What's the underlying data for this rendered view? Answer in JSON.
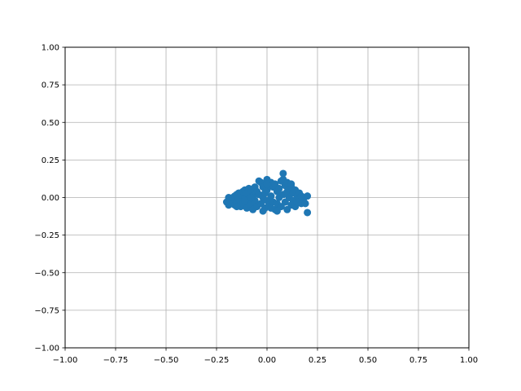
{
  "chart_data": {
    "type": "scatter",
    "title": "",
    "xlabel": "",
    "ylabel": "",
    "xlim": [
      -1.0,
      1.0
    ],
    "ylim": [
      -1.0,
      1.0
    ],
    "x_ticks": [
      -1.0,
      -0.75,
      -0.5,
      -0.25,
      0.0,
      0.25,
      0.5,
      0.75,
      1.0
    ],
    "y_ticks": [
      -1.0,
      -0.75,
      -0.5,
      -0.25,
      0.0,
      0.25,
      0.5,
      0.75,
      1.0
    ],
    "x_tick_labels": [
      "−1.00",
      "−0.75",
      "−0.50",
      "−0.25",
      "0.00",
      "0.25",
      "0.50",
      "0.75",
      "1.00"
    ],
    "y_tick_labels": [
      "−1.00",
      "−0.75",
      "−0.50",
      "−0.25",
      "0.00",
      "0.25",
      "0.50",
      "0.75",
      "1.00"
    ],
    "grid": true,
    "legend": false,
    "marker_color": "#1f77b4",
    "series": [
      {
        "points": [
          [
            -0.2,
            -0.03
          ],
          [
            -0.19,
            -0.05
          ],
          [
            -0.19,
            0.0
          ],
          [
            -0.18,
            -0.02
          ],
          [
            -0.18,
            -0.04
          ],
          [
            -0.17,
            0.0
          ],
          [
            -0.16,
            -0.05
          ],
          [
            -0.16,
            0.01
          ],
          [
            -0.15,
            -0.03
          ],
          [
            -0.15,
            0.02
          ],
          [
            -0.14,
            -0.01
          ],
          [
            -0.14,
            0.03
          ],
          [
            -0.13,
            -0.06
          ],
          [
            -0.13,
            0.02
          ],
          [
            -0.12,
            -0.04
          ],
          [
            -0.12,
            0.04
          ],
          [
            -0.11,
            0.0
          ],
          [
            -0.11,
            0.05
          ],
          [
            -0.1,
            -0.07
          ],
          [
            -0.1,
            0.03
          ],
          [
            -0.09,
            0.06
          ],
          [
            -0.09,
            -0.03
          ],
          [
            -0.08,
            0.05
          ],
          [
            -0.08,
            -0.05
          ],
          [
            -0.07,
            0.01
          ],
          [
            -0.07,
            -0.08
          ],
          [
            -0.06,
            0.07
          ],
          [
            -0.06,
            -0.02
          ],
          [
            -0.05,
            0.04
          ],
          [
            -0.05,
            -0.06
          ],
          [
            -0.04,
            0.11
          ],
          [
            -0.04,
            0.02
          ],
          [
            -0.03,
            0.1
          ],
          [
            -0.03,
            -0.04
          ],
          [
            -0.02,
            0.07
          ],
          [
            -0.02,
            0.0
          ],
          [
            -0.01,
            0.03
          ],
          [
            -0.01,
            -0.07
          ],
          [
            0.0,
            0.12
          ],
          [
            0.0,
            0.05
          ],
          [
            0.0,
            -0.02
          ],
          [
            0.01,
            0.08
          ],
          [
            0.01,
            -0.05
          ],
          [
            0.02,
            0.1
          ],
          [
            0.02,
            0.01
          ],
          [
            0.03,
            0.07
          ],
          [
            0.03,
            -0.03
          ],
          [
            0.04,
            0.09
          ],
          [
            0.04,
            -0.08
          ],
          [
            0.05,
            0.04
          ],
          [
            0.05,
            -0.04
          ],
          [
            0.06,
            0.06
          ],
          [
            0.06,
            0.0
          ],
          [
            0.07,
            0.11
          ],
          [
            0.07,
            -0.06
          ],
          [
            0.08,
            0.16
          ],
          [
            0.08,
            0.12
          ],
          [
            0.08,
            0.02
          ],
          [
            0.09,
            0.08
          ],
          [
            0.09,
            -0.03
          ],
          [
            0.1,
            0.1
          ],
          [
            0.1,
            0.04
          ],
          [
            0.1,
            -0.08
          ],
          [
            0.11,
            0.06
          ],
          [
            0.11,
            0.0
          ],
          [
            0.12,
            0.07
          ],
          [
            0.12,
            -0.05
          ],
          [
            0.13,
            0.03
          ],
          [
            0.13,
            -0.02
          ],
          [
            0.14,
            0.05
          ],
          [
            0.14,
            -0.06
          ],
          [
            0.15,
            0.01
          ],
          [
            0.15,
            -0.03
          ],
          [
            0.16,
            0.03
          ],
          [
            0.16,
            -0.01
          ],
          [
            0.17,
            -0.04
          ],
          [
            0.17,
            0.01
          ],
          [
            0.18,
            -0.02
          ],
          [
            0.18,
            0.0
          ],
          [
            0.19,
            -0.04
          ],
          [
            0.2,
            0.01
          ],
          [
            0.2,
            -0.1
          ],
          [
            -0.15,
            -0.06
          ],
          [
            0.05,
            -0.09
          ],
          [
            -0.02,
            -0.09
          ],
          [
            0.02,
            -0.07
          ],
          [
            -0.08,
            0.0
          ],
          [
            0.12,
            0.09
          ],
          [
            -0.11,
            -0.02
          ],
          [
            0.0,
            0.09
          ]
        ]
      }
    ]
  }
}
